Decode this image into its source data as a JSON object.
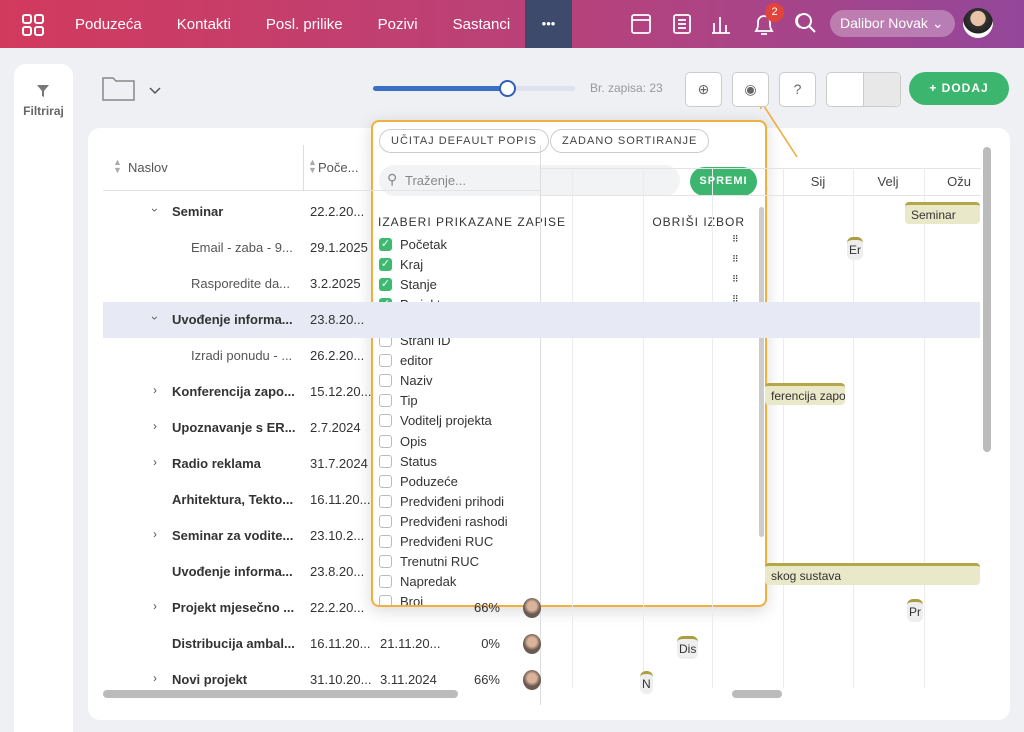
{
  "nav": {
    "items": [
      "Poduzeća",
      "Kontakti",
      "Posl. prilike",
      "Pozivi",
      "Sastanci"
    ],
    "more": "•••",
    "notifications": "2",
    "user": "Dalibor Novak"
  },
  "sidebar": {
    "filter": "Filtriraj"
  },
  "toolbar": {
    "record_count": "Br. zapisa: 23",
    "add": "DODAJ"
  },
  "table": {
    "columns": [
      "Naslov",
      "Poče..."
    ],
    "rows": [
      {
        "title": "Seminar",
        "start": "22.2.20..."
      },
      {
        "title": "Email - zaba - 9...",
        "start": "29.1.2025"
      },
      {
        "title": "Rasporedite da...",
        "start": "3.2.2025"
      },
      {
        "title": "Uvođenje informa...",
        "start": "23.8.20..."
      },
      {
        "title": "Izradi ponudu - ...",
        "start": "26.2.20..."
      },
      {
        "title": "Konferencija zapo...",
        "start": "15.12.20..."
      },
      {
        "title": "Upoznavanje s ER...",
        "start": "2.7.2024"
      },
      {
        "title": "Radio reklama",
        "start": "31.7.2024"
      },
      {
        "title": "Arhitektura, Tekto...",
        "start": "16.11.20..."
      },
      {
        "title": "Seminar za vodite...",
        "start": "23.10.2..."
      },
      {
        "title": "Uvođenje informa...",
        "start": "23.8.20..."
      },
      {
        "title": "Projekt mjesečno ...",
        "start": "22.2.20...",
        "progress": "66%"
      },
      {
        "title": "Distribucija ambal...",
        "start": "16.11.20...",
        "end": "21.11.20...",
        "progress": "0%"
      },
      {
        "title": "Novi projekt",
        "start": "31.10.20...",
        "end": "3.11.2024",
        "progress": "66%"
      }
    ]
  },
  "gantt": {
    "months": [
      "Sij",
      "Velj",
      "Ožu"
    ],
    "bars": [
      "Seminar",
      "ferencija zapo",
      "skog sustava"
    ],
    "markers": [
      "Er",
      "Pr",
      "Dis",
      "N"
    ]
  },
  "popup": {
    "load_default": "UČITAJ DEFAULT POPIS",
    "default_sort": "ZADANO SORTIRANJE",
    "search": "Traženje...",
    "save": "SPREMI",
    "section": "IZABERI PRIKAZANE ZAPISE",
    "clear": "OBRIŠI IZBOR",
    "selected": [
      "Početak",
      "Kraj",
      "Stanje",
      "Projektna grupa"
    ],
    "available": [
      "Strani ID",
      "editor",
      "Naziv",
      "Tip",
      "Voditelj projekta",
      "Opis",
      "Status",
      "Poduzeće",
      "Predviđeni prihodi",
      "Predviđeni rashodi",
      "Predviđeni RUC",
      "Trenutni RUC",
      "Napredak",
      "Broj"
    ]
  }
}
